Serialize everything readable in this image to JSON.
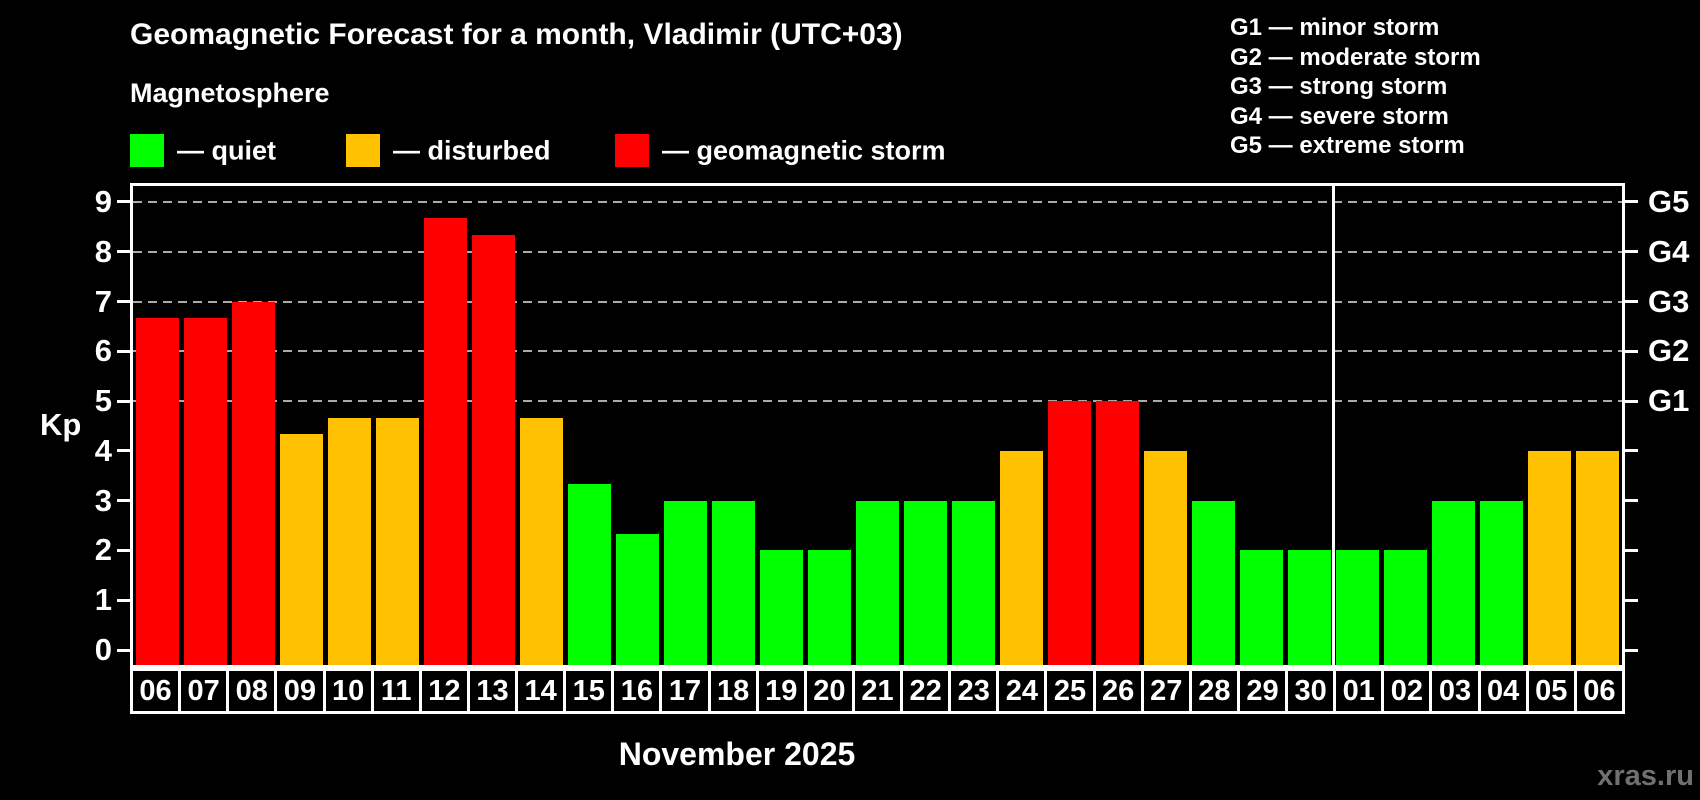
{
  "header": {
    "title": "Geomagnetic Forecast for a month, Vladimir (UTC+03)",
    "subtitle": "Magnetosphere"
  },
  "legend": {
    "items": [
      {
        "label": "— quiet",
        "level": "quiet"
      },
      {
        "label": "— disturbed",
        "level": "disturbed"
      },
      {
        "label": "— geomagnetic storm",
        "level": "storm"
      }
    ]
  },
  "g_legend": {
    "items": [
      "G1 — minor storm",
      "G2 — moderate storm",
      "G3 — strong storm",
      "G4 — severe storm",
      "G5 — extreme storm"
    ]
  },
  "colors": {
    "quiet": "#00ff00",
    "disturbed": "#ffc100",
    "storm": "#ff0000",
    "gridline": "#aaaaaa",
    "axis": "#ffffff",
    "watermark": "#707070"
  },
  "chart_data": {
    "type": "bar",
    "title": "Geomagnetic Forecast for a month, Vladimir (UTC+03)",
    "ylabel": "Kp",
    "xlabel": "November 2025",
    "ylim": [
      0,
      9
    ],
    "yticks": [
      0,
      1,
      2,
      3,
      4,
      5,
      6,
      7,
      8,
      9
    ],
    "gridlines_at": [
      5,
      6,
      7,
      8,
      9
    ],
    "grid": "dashed horizontal at G-storm levels only",
    "legend_position": "top",
    "right_axis": [
      {
        "label": "G1",
        "kp": 5
      },
      {
        "label": "G2",
        "kp": 6
      },
      {
        "label": "G3",
        "kp": 7
      },
      {
        "label": "G4",
        "kp": 8
      },
      {
        "label": "G5",
        "kp": 9
      }
    ],
    "categories": [
      "06",
      "07",
      "08",
      "09",
      "10",
      "11",
      "12",
      "13",
      "14",
      "15",
      "16",
      "17",
      "18",
      "19",
      "20",
      "21",
      "22",
      "23",
      "24",
      "25",
      "26",
      "27",
      "28",
      "29",
      "30",
      "01",
      "02",
      "03",
      "04",
      "05",
      "06"
    ],
    "values": [
      6.67,
      6.67,
      7,
      4.33,
      4.67,
      4.67,
      8.67,
      8.33,
      4.67,
      3.33,
      2.33,
      3,
      3,
      2,
      2,
      3,
      3,
      3,
      4,
      5,
      5,
      4,
      3,
      2,
      2,
      2,
      2,
      3,
      3,
      4,
      4
    ],
    "levels": [
      "storm",
      "storm",
      "storm",
      "disturbed",
      "disturbed",
      "disturbed",
      "storm",
      "storm",
      "disturbed",
      "quiet",
      "quiet",
      "quiet",
      "quiet",
      "quiet",
      "quiet",
      "quiet",
      "quiet",
      "quiet",
      "disturbed",
      "storm",
      "storm",
      "disturbed",
      "quiet",
      "quiet",
      "quiet",
      "quiet",
      "quiet",
      "quiet",
      "quiet",
      "disturbed",
      "disturbed"
    ],
    "month_separator_after_index": 24
  },
  "footer": {
    "month_label": "November 2025",
    "watermark": "xras.ru"
  }
}
